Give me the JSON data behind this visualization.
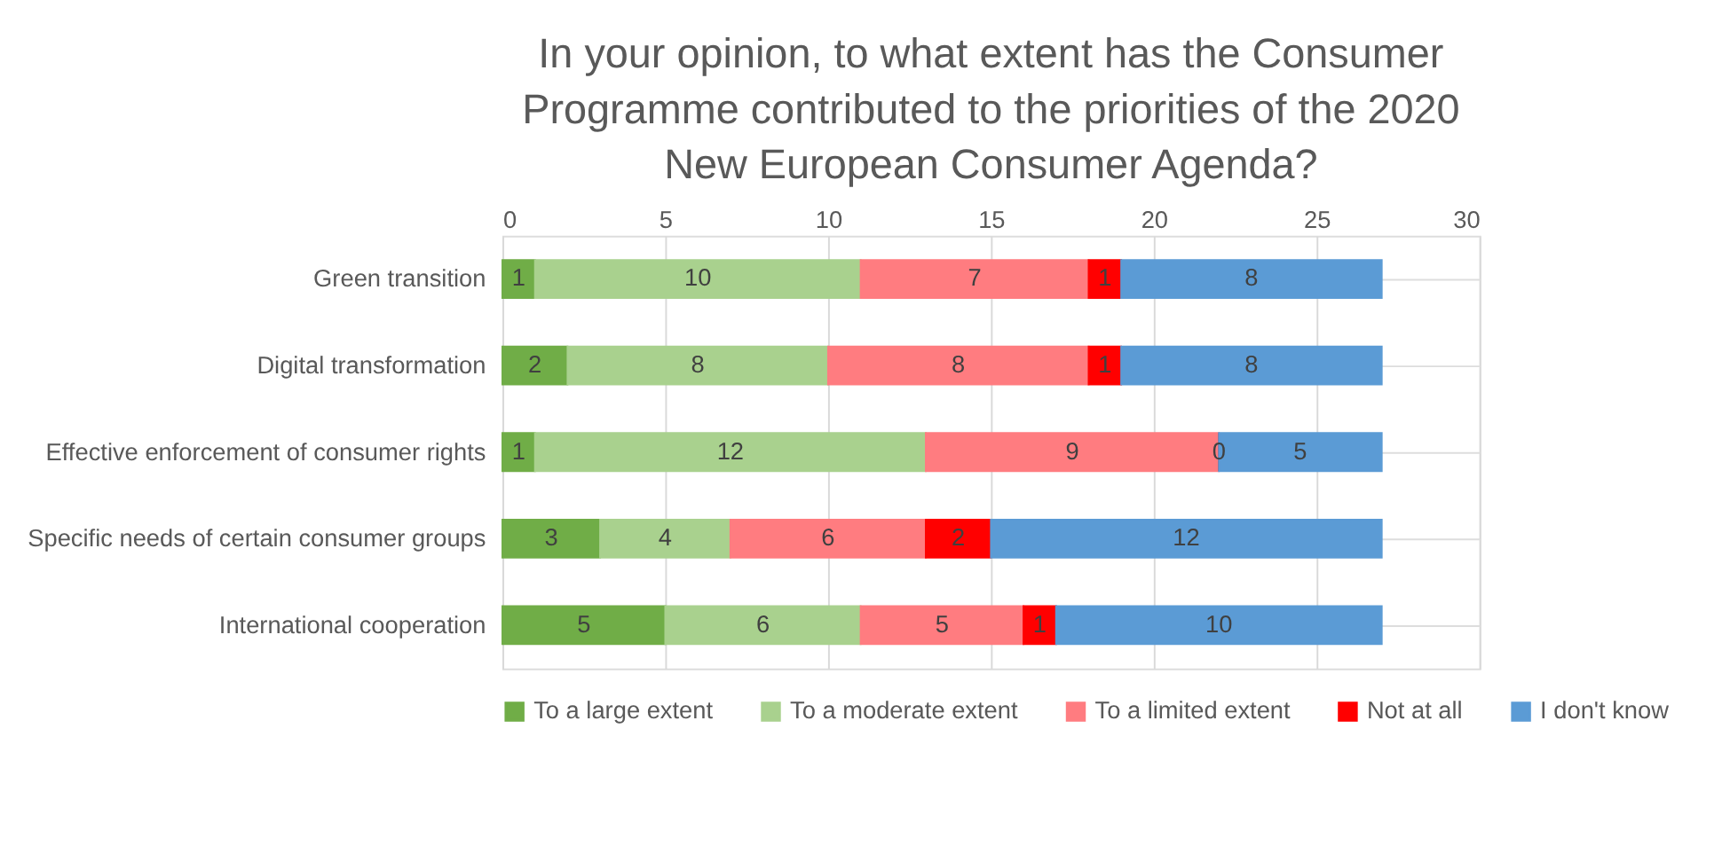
{
  "chart_data": {
    "type": "bar",
    "orientation": "horizontal",
    "stacked": true,
    "title": "In your opinion, to what extent has the Consumer Programme contributed to the priorities of the 2020 New European Consumer Agenda?",
    "categories": [
      "Green transition",
      "Digital transformation",
      "Effective enforcement of consumer rights",
      "Specific needs of certain consumer groups",
      "International cooperation"
    ],
    "series": [
      {
        "name": "To a large extent",
        "color": "#70ad47",
        "values": [
          1,
          2,
          1,
          3,
          5
        ]
      },
      {
        "name": "To a moderate extent",
        "color": "#a9d18e",
        "values": [
          10,
          8,
          12,
          4,
          6
        ]
      },
      {
        "name": "To a limited extent",
        "color": "#ff7c80",
        "values": [
          7,
          8,
          9,
          6,
          5
        ]
      },
      {
        "name": "Not at all",
        "color": "#ff0000",
        "values": [
          1,
          1,
          0,
          2,
          1
        ]
      },
      {
        "name": "I don't know",
        "color": "#5b9bd5",
        "values": [
          8,
          8,
          5,
          12,
          10
        ]
      }
    ],
    "xlim": [
      0,
      30
    ],
    "xticks": [
      0,
      5,
      10,
      15,
      20,
      25,
      30
    ],
    "grid": "x",
    "legend": "bottom",
    "data_labels": true
  }
}
